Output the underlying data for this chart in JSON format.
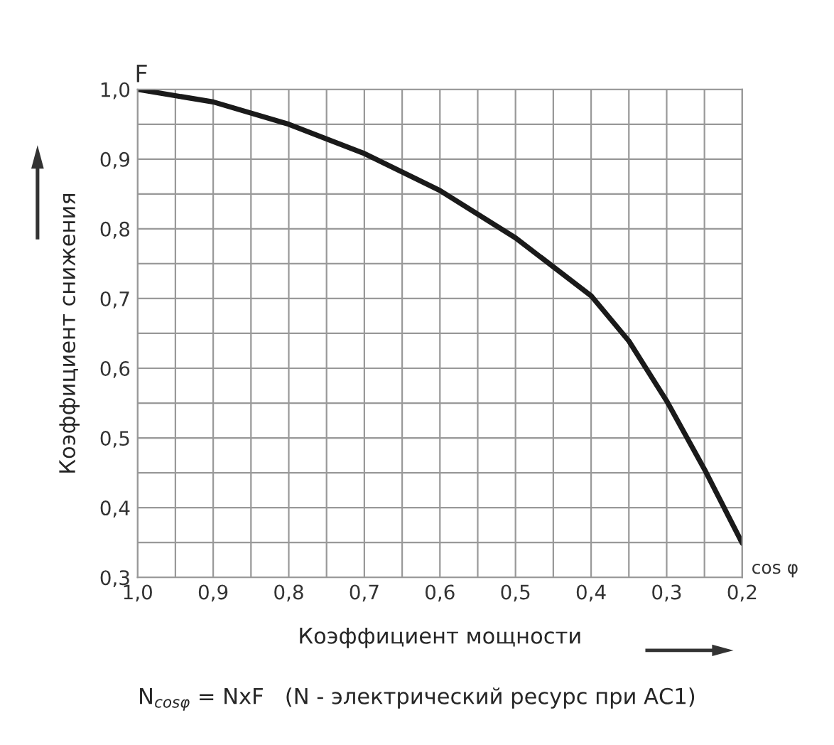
{
  "chart_data": {
    "type": "line",
    "xlabel": "Коэффициент мощности",
    "ylabel": "Коэффициент снижения",
    "annotations": [
      "F",
      "cos φ",
      "N$_{cosφ}$ = NxF   (N - электрический ресурс при AC1)"
    ],
    "x": [
      1.0,
      0.9,
      0.8,
      0.7,
      0.6,
      0.5,
      0.4,
      0.35,
      0.3,
      0.25,
      0.2
    ],
    "series": [
      {
        "color": "#1a1a1a",
        "values": [
          1.0,
          0.982,
          0.95,
          0.908,
          0.855,
          0.787,
          0.704,
          0.639,
          0.553,
          0.455,
          0.349
        ]
      }
    ],
    "xlim": [
      1.0,
      0.2
    ],
    "xticks": [
      {
        "value": 1.0,
        "label": "1,0"
      },
      {
        "value": 0.95,
        "label": null
      },
      {
        "value": 0.9,
        "label": "0,9"
      },
      {
        "value": 0.85,
        "label": null
      },
      {
        "value": 0.8,
        "label": "0,8"
      },
      {
        "value": 0.75,
        "label": null
      },
      {
        "value": 0.7,
        "label": "0,7"
      },
      {
        "value": 0.65,
        "label": null
      },
      {
        "value": 0.6,
        "label": "0,6"
      },
      {
        "value": 0.55,
        "label": null
      },
      {
        "value": 0.5,
        "label": "0,5"
      },
      {
        "value": 0.45,
        "label": null
      },
      {
        "value": 0.4,
        "label": "0,4"
      },
      {
        "value": 0.35,
        "label": null
      },
      {
        "value": 0.3,
        "label": "0,3"
      },
      {
        "value": 0.25,
        "label": null
      },
      {
        "value": 0.2,
        "label": "0,2"
      }
    ],
    "ylim": [
      0.3,
      1.0
    ],
    "yticks": [
      {
        "value": 0.3,
        "label": "0,3"
      },
      {
        "value": 0.35,
        "label": null
      },
      {
        "value": 0.4,
        "label": "0,4"
      },
      {
        "value": 0.45,
        "label": null
      },
      {
        "value": 0.5,
        "label": "0,5"
      },
      {
        "value": 0.55,
        "label": null
      },
      {
        "value": 0.6,
        "label": "0,6"
      },
      {
        "value": 0.65,
        "label": null
      },
      {
        "value": 0.7,
        "label": "0,7"
      },
      {
        "value": 0.75,
        "label": null
      },
      {
        "value": 0.8,
        "label": "0,8"
      },
      {
        "value": 0.85,
        "label": null
      },
      {
        "value": 0.9,
        "label": "0,9"
      },
      {
        "value": 0.95,
        "label": null
      },
      {
        "value": 1.0,
        "label": "1,0"
      }
    ],
    "grid": true,
    "marker": "none",
    "line_style": "solid",
    "legend": false
  }
}
